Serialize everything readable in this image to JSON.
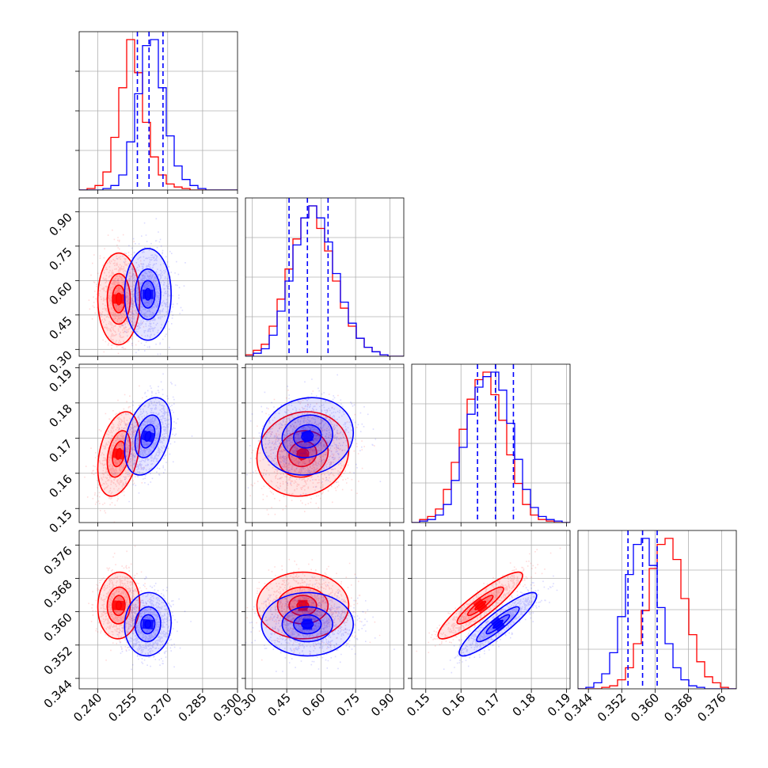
{
  "chart_data": {
    "type": "corner",
    "grid": true,
    "colors": {
      "a": "#ff0000",
      "b": "#0000ff"
    },
    "params": [
      {
        "range": [
          0.232,
          0.3
        ],
        "ticks": [
          0.24,
          0.255,
          0.27,
          0.285,
          0.3
        ],
        "tick_labels": [
          "0.240",
          "0.255",
          "0.270",
          "0.285",
          "0.300"
        ]
      },
      {
        "range": [
          0.27,
          0.96
        ],
        "ticks": [
          0.3,
          0.45,
          0.6,
          0.75,
          0.9
        ],
        "tick_labels": [
          "0.30",
          "0.45",
          "0.60",
          "0.75",
          "0.90"
        ]
      },
      {
        "range": [
          0.146,
          0.191
        ],
        "ticks": [
          0.15,
          0.16,
          0.17,
          0.18,
          0.19
        ],
        "tick_labels": [
          "0.15",
          "0.16",
          "0.17",
          "0.18",
          "0.19"
        ]
      },
      {
        "range": [
          0.3415,
          0.3795
        ],
        "ticks": [
          0.344,
          0.352,
          0.36,
          0.368,
          0.376
        ],
        "tick_labels": [
          "0.344",
          "0.352",
          "0.360",
          "0.368",
          "0.376"
        ]
      }
    ],
    "series": [
      {
        "key": "a",
        "mean": [
          0.249,
          0.52,
          0.1655,
          0.3615
        ],
        "sd": [
          0.0045,
          0.1,
          0.006,
          0.004
        ],
        "corr": [
          [
            0,
            1,
            0.0
          ],
          [
            0,
            2,
            0.35
          ],
          [
            0,
            3,
            0.05
          ],
          [
            1,
            2,
            0.1
          ],
          [
            1,
            3,
            0.0
          ],
          [
            2,
            3,
            0.9
          ]
        ],
        "hist": [
          {
            "edges": [
              0.232,
              0.3
            ],
            "counts": [
              0,
              1,
              3,
              12,
              35,
              68,
              100,
              78,
              45,
              22,
              10,
              4,
              2,
              1,
              0,
              0,
              0,
              0,
              0,
              0
            ]
          },
          {
            "edges": [
              0.27,
              0.96
            ],
            "counts": [
              1,
              4,
              8,
              20,
              38,
              58,
              78,
              92,
              100,
              85,
              70,
              50,
              32,
              20,
              12,
              6,
              3,
              1,
              0,
              0
            ]
          },
          {
            "edges": [
              0.146,
              0.191
            ],
            "counts": [
              0,
              2,
              4,
              9,
              22,
              40,
              62,
              82,
              95,
              100,
              85,
              68,
              45,
              26,
              12,
              5,
              2,
              1,
              0,
              0
            ]
          },
          {
            "edges": [
              0.3415,
              0.3795
            ],
            "counts": [
              0,
              0,
              0,
              1,
              2,
              6,
              14,
              30,
              52,
              80,
              96,
              100,
              86,
              60,
              36,
              18,
              8,
              4,
              1,
              0
            ]
          }
        ]
      },
      {
        "key": "b",
        "mean": [
          0.2615,
          0.54,
          0.1705,
          0.357
        ],
        "sd": [
          0.005,
          0.1,
          0.0055,
          0.0038
        ],
        "corr": [
          [
            0,
            1,
            0.0
          ],
          [
            0,
            2,
            0.35
          ],
          [
            0,
            3,
            0.05
          ],
          [
            1,
            2,
            0.1
          ],
          [
            1,
            3,
            0.0
          ],
          [
            2,
            3,
            0.9
          ]
        ],
        "hist": [
          {
            "edges": [
              0.232,
              0.3
            ],
            "counts": [
              0,
              0,
              0,
              1,
              3,
              10,
              32,
              64,
              96,
              100,
              68,
              36,
              16,
              7,
              3,
              1,
              0,
              0,
              0,
              0
            ]
          },
          {
            "edges": [
              0.27,
              0.96
            ],
            "counts": [
              0,
              2,
              5,
              14,
              30,
              50,
              74,
              92,
              100,
              92,
              76,
              55,
              36,
              22,
              12,
              6,
              3,
              1,
              0,
              0
            ]
          },
          {
            "edges": [
              0.146,
              0.191
            ],
            "counts": [
              0,
              1,
              2,
              5,
              12,
              28,
              50,
              72,
              90,
              97,
              100,
              88,
              66,
              42,
              22,
              10,
              4,
              2,
              1,
              0
            ]
          },
          {
            "edges": [
              0.3415,
              0.3795
            ],
            "counts": [
              0,
              1,
              4,
              10,
              24,
              48,
              76,
              96,
              100,
              82,
              54,
              30,
              14,
              6,
              2,
              1,
              0,
              0,
              0,
              0
            ]
          }
        ]
      }
    ],
    "quantile_lines": {
      "series": "b",
      "values": [
        [
          0.257,
          0.262,
          0.268
        ],
        [
          0.46,
          0.54,
          0.63
        ],
        [
          0.1647,
          0.1698,
          0.1749
        ],
        [
          0.3535,
          0.357,
          0.3605
        ]
      ]
    }
  }
}
